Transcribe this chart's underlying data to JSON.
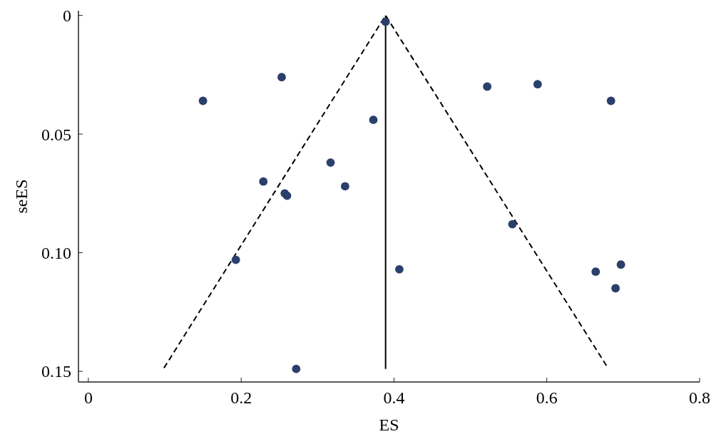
{
  "chart_data": {
    "type": "scatter",
    "xlabel": "ES",
    "ylabel": "seES",
    "xlim": [
      -0.013,
      0.8
    ],
    "ylim": [
      0.1545,
      -0.002
    ],
    "xticks": [
      0,
      0.2,
      0.4,
      0.6,
      0.8
    ],
    "yticks": [
      0,
      {
        "value": 0.05,
        "label": "0.05"
      },
      {
        "value": 0.1,
        "label": "0.10"
      },
      {
        "value": 0.15,
        "label": "0.15"
      }
    ],
    "grid": false,
    "series": [
      {
        "type": "line",
        "color": "#000000",
        "line_style": "dashed",
        "x": [
          0.099,
          0.389,
          0.68
        ],
        "values": [
          0.1486,
          0,
          0.1486
        ]
      },
      {
        "type": "line",
        "color": "#000000",
        "line_style": "solid",
        "x": [
          0.389,
          0.389
        ],
        "values": [
          0,
          0.149
        ]
      },
      {
        "color": "#2b3f6b",
        "marker": "circle",
        "x": [
          0.389,
          0.253,
          0.15,
          0.373,
          0.522,
          0.588,
          0.684,
          0.317,
          0.229,
          0.336,
          0.257,
          0.26,
          0.555,
          0.193,
          0.407,
          0.697,
          0.664,
          0.69,
          0.272
        ],
        "values": [
          0.0027,
          0.026,
          0.036,
          0.044,
          0.03,
          0.029,
          0.036,
          0.062,
          0.07,
          0.072,
          0.075,
          0.076,
          0.088,
          0.103,
          0.107,
          0.105,
          0.108,
          0.115,
          0.149
        ]
      }
    ]
  }
}
